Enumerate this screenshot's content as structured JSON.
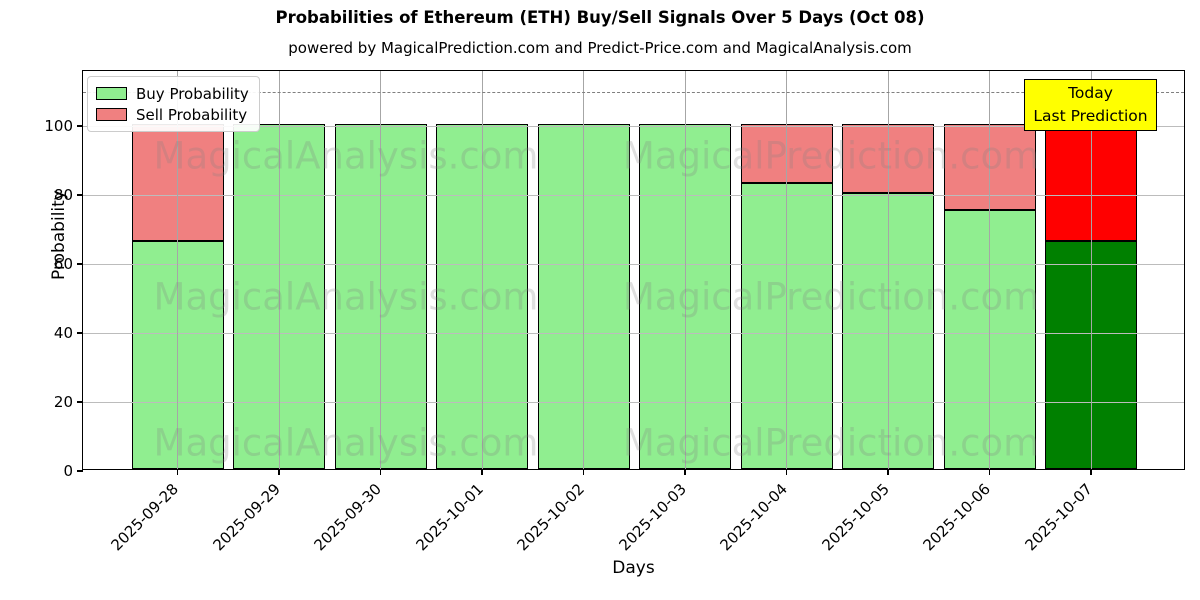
{
  "title": "Probabilities of Ethereum (ETH) Buy/Sell Signals Over 5 Days (Oct 08)",
  "subtitle": "powered by MagicalPrediction.com and Predict-Price.com and MagicalAnalysis.com",
  "legend": {
    "buy_label": "Buy Probability",
    "sell_label": "Sell Probability"
  },
  "annotation": {
    "line1": "Today",
    "line2": "Last Prediction",
    "bg_color": "#ffff00"
  },
  "watermarks": {
    "left_text": "MagicalAnalysis.com",
    "right_text": "MagicalPrediction.com"
  },
  "colors": {
    "buy": "#90ee90",
    "sell": "#f08080",
    "buy_today": "#008000",
    "sell_today": "#ff0000",
    "bar_edge": "#000000",
    "grid": "#b0b0b0",
    "dashed_line": "#7f7f7f"
  },
  "chart_data": {
    "type": "bar",
    "stacked": true,
    "title": "Probabilities of Ethereum (ETH) Buy/Sell Signals Over 5 Days (Oct 08)",
    "xlabel": "Days",
    "ylabel": "Probability",
    "ylim": [
      0,
      116
    ],
    "yticks": [
      0,
      20,
      40,
      60,
      80,
      100
    ],
    "grid": true,
    "dashed_hline": 110,
    "legend_position": "upper left",
    "categories": [
      "2025-09-28",
      "2025-09-29",
      "2025-09-30",
      "2025-10-01",
      "2025-10-02",
      "2025-10-03",
      "2025-10-04",
      "2025-10-05",
      "2025-10-06",
      "2025-10-07"
    ],
    "series": [
      {
        "name": "Buy Probability",
        "values": [
          66,
          100,
          100,
          100,
          100,
          100,
          83,
          80,
          75,
          66
        ]
      },
      {
        "name": "Sell Probability",
        "values": [
          34,
          0,
          0,
          0,
          0,
          0,
          17,
          20,
          25,
          34
        ]
      }
    ],
    "today_index": 9
  }
}
